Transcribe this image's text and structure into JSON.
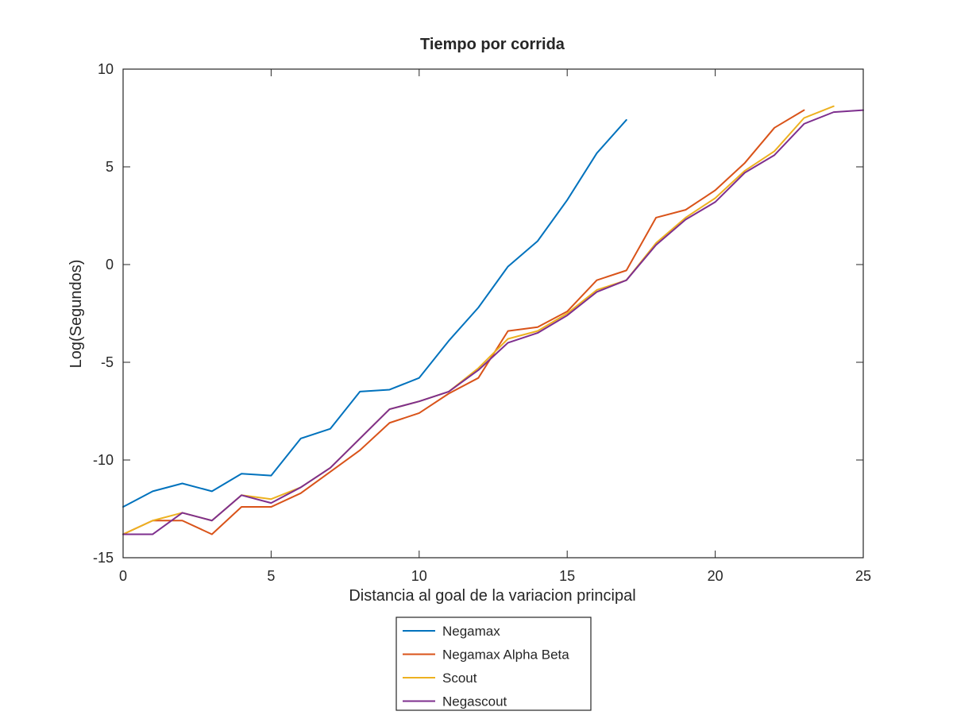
{
  "chart_data": {
    "type": "line",
    "title": "Tiempo por corrida",
    "xlabel": "Distancia al goal de la variacion principal",
    "ylabel": "Log(Segundos)",
    "xlim": [
      0,
      25
    ],
    "ylim": [
      -15,
      10
    ],
    "xticks": [
      0,
      5,
      10,
      15,
      20,
      25
    ],
    "yticks": [
      -15,
      -10,
      -5,
      0,
      5,
      10
    ],
    "grid": false,
    "legend_position": "bottom-center-outside",
    "series": [
      {
        "name": "Negamax",
        "color": "#0072bd",
        "x": [
          0,
          1,
          2,
          3,
          4,
          5,
          6,
          7,
          8,
          9,
          10,
          11,
          12,
          13,
          14,
          15,
          16,
          17
        ],
        "y": [
          -12.4,
          -11.6,
          -11.2,
          -11.6,
          -10.7,
          -10.8,
          -8.9,
          -8.4,
          -6.5,
          -6.4,
          -5.8,
          -3.9,
          -2.2,
          -0.1,
          1.2,
          3.3,
          5.7,
          7.4
        ]
      },
      {
        "name": "Negamax Alpha Beta",
        "color": "#d95319",
        "x": [
          0,
          1,
          2,
          3,
          4,
          5,
          6,
          7,
          8,
          9,
          10,
          11,
          12,
          13,
          14,
          15,
          16,
          17,
          18,
          19,
          20,
          21,
          22,
          23
        ],
        "y": [
          -13.8,
          -13.1,
          -13.1,
          -13.8,
          -12.4,
          -12.4,
          -11.7,
          -10.6,
          -9.5,
          -8.1,
          -7.6,
          -6.6,
          -5.8,
          -3.4,
          -3.2,
          -2.4,
          -0.8,
          -0.3,
          2.4,
          2.8,
          3.8,
          5.2,
          7.0,
          7.9
        ]
      },
      {
        "name": "Scout",
        "color": "#edb120",
        "x": [
          0,
          1,
          2,
          3,
          4,
          5,
          6,
          7,
          8,
          9,
          10,
          11,
          12,
          13,
          14,
          15,
          16,
          17,
          18,
          19,
          20,
          21,
          22,
          23,
          24
        ],
        "y": [
          -13.8,
          -13.1,
          -12.7,
          -13.1,
          -11.8,
          -12.0,
          -11.4,
          -10.4,
          -8.9,
          -7.4,
          -7.0,
          -6.5,
          -5.3,
          -3.8,
          -3.4,
          -2.5,
          -1.3,
          -0.8,
          1.1,
          2.4,
          3.4,
          4.8,
          5.8,
          7.5,
          8.1
        ]
      },
      {
        "name": "Negascout",
        "color": "#7e2f8e",
        "x": [
          0,
          1,
          2,
          3,
          4,
          5,
          6,
          7,
          8,
          9,
          10,
          11,
          12,
          13,
          14,
          15,
          16,
          17,
          18,
          19,
          20,
          21,
          22,
          23,
          24,
          25
        ],
        "y": [
          -13.8,
          -13.8,
          -12.7,
          -13.1,
          -11.8,
          -12.2,
          -11.4,
          -10.4,
          -8.9,
          -7.4,
          -7.0,
          -6.5,
          -5.4,
          -4.0,
          -3.5,
          -2.6,
          -1.4,
          -0.8,
          1.0,
          2.3,
          3.2,
          4.7,
          5.6,
          7.2,
          7.8,
          7.9
        ]
      }
    ]
  }
}
